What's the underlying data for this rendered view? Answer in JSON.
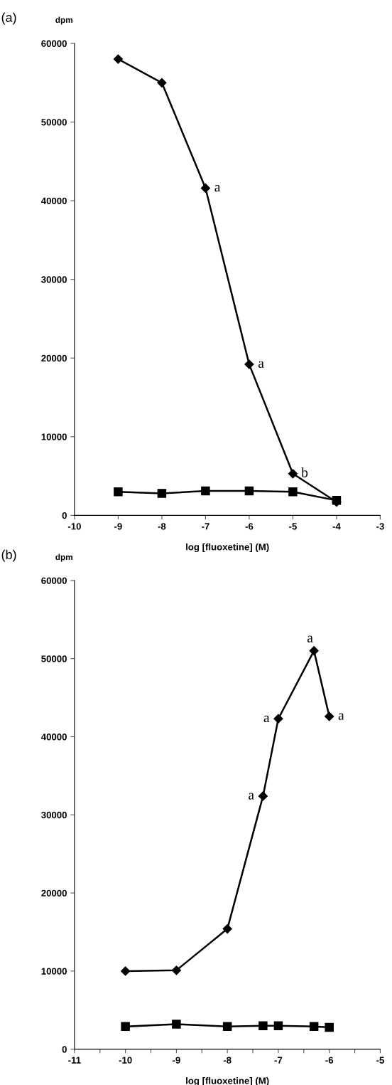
{
  "chart_data": [
    {
      "type": "line",
      "title": "(a)",
      "ylabel": "dpm",
      "xlabel": "log [fluoxetine] (M)",
      "xlim": [
        -10,
        -3
      ],
      "xticks": [
        -10,
        -9,
        -8,
        -7,
        -6,
        -5,
        -4,
        -3
      ],
      "ylim": [
        0,
        60000
      ],
      "yticks": [
        0,
        10000,
        20000,
        30000,
        40000,
        50000,
        60000
      ],
      "grid": false,
      "legend": false,
      "series": [
        {
          "x": [
            -9,
            -8,
            -7,
            -6,
            -5,
            -4
          ],
          "values": [
            58000,
            55000,
            41600,
            19200,
            5300,
            1700
          ],
          "color": "#000000",
          "marker": "diamond"
        },
        {
          "x": [
            -9,
            -8,
            -7,
            -6,
            -5,
            -4
          ],
          "values": [
            3000,
            2800,
            3100,
            3100,
            3000,
            1900
          ],
          "color": "#000000",
          "marker": "square"
        }
      ],
      "annotations": [
        {
          "text": "a",
          "x": -7,
          "y": 41600
        },
        {
          "text": "a",
          "x": -6,
          "y": 19200
        },
        {
          "text": "b",
          "x": -5,
          "y": 5300
        }
      ]
    },
    {
      "type": "line",
      "title": "(b)",
      "ylabel": "dpm",
      "xlabel": "log [fluoxetine] (M)",
      "xlim": [
        -11,
        -5
      ],
      "xticks": [
        -11,
        {
          "value": -10.5,
          "label": null
        },
        -10,
        {
          "value": -9.5,
          "label": null
        },
        -9,
        {
          "value": -8.5,
          "label": null
        },
        -8,
        {
          "value": -7.5,
          "label": null
        },
        -7,
        {
          "value": -6.5,
          "label": null
        },
        -6,
        {
          "value": -5.5,
          "label": null
        },
        -5
      ],
      "ylim": [
        0,
        60000
      ],
      "yticks": [
        0,
        10000,
        20000,
        30000,
        40000,
        50000,
        60000
      ],
      "grid": false,
      "legend": false,
      "series": [
        {
          "x": [
            -10,
            -9,
            -8,
            -7.3,
            -7,
            -6.3,
            -6
          ],
          "values": [
            10000,
            10100,
            15400,
            32400,
            42300,
            51000,
            42600
          ],
          "color": "#000000",
          "marker": "diamond"
        },
        {
          "x": [
            -10,
            -9,
            -8,
            -7.3,
            -7,
            -6.3,
            -6
          ],
          "values": [
            2900,
            3200,
            2900,
            3000,
            3000,
            2900,
            2800
          ],
          "color": "#000000",
          "marker": "square"
        }
      ],
      "annotations": [
        {
          "text": "a",
          "x": -7.3,
          "y": 32400
        },
        {
          "text": "a",
          "x": -7,
          "y": 42300
        },
        {
          "text": "a",
          "x": -6.3,
          "y": 51000
        },
        {
          "text": "a",
          "x": -6,
          "y": 42600
        }
      ]
    }
  ]
}
